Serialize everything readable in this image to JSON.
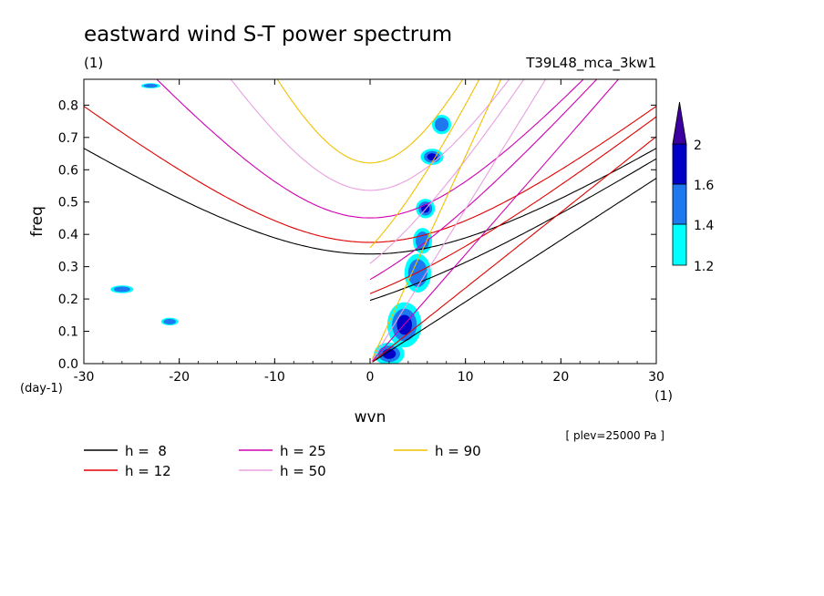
{
  "chart_data": {
    "type": "heatmap",
    "title": "eastward wind S-T power spectrum",
    "subtitle_left": "(1)",
    "subtitle_right": "T39L48_mca_3kw1",
    "xlabel": "wvn",
    "x_unit": "(1)",
    "ylabel": "freq",
    "y_unit": "(day-1)",
    "note": "[ plev=25000 Pa ]",
    "xlim": [
      -30,
      30
    ],
    "ylim": [
      0,
      0.88
    ],
    "x_ticks": [
      -30,
      -20,
      -10,
      0,
      10,
      20,
      30
    ],
    "x_tick_labels": [
      "-30",
      "-20",
      "-10",
      "0",
      "10",
      "20",
      "30"
    ],
    "y_ticks": [
      0,
      0.1,
      0.2,
      0.3,
      0.4,
      0.5,
      0.6,
      0.7,
      0.8
    ],
    "y_tick_labels": [
      "0.0",
      "0.1",
      "0.2",
      "0.3",
      "0.4",
      "0.5",
      "0.6",
      "0.7",
      "0.8"
    ],
    "colorbar": {
      "levels": [
        1.2,
        1.4,
        1.6,
        2
      ],
      "labels": [
        "1.2",
        "1.4",
        "1.6",
        "2"
      ],
      "colors": [
        "#00ffff",
        "#1e78f0",
        "#0000c8",
        "#3c00a0"
      ]
    },
    "dispersion_curves": [
      {
        "label": "h =  8",
        "h": 8,
        "color": "#000000"
      },
      {
        "label": "h = 12",
        "h": 12,
        "color": "#e00000"
      },
      {
        "label": "h = 25",
        "h": 25,
        "color": "#d000b0"
      },
      {
        "label": "h = 50",
        "h": 50,
        "color": "#e8a0e0"
      },
      {
        "label": "h = 90",
        "h": 90,
        "color": "#f0c000"
      }
    ],
    "contour_blobs": [
      {
        "x": 2.0,
        "y": 0.03,
        "rx": 1.6,
        "ry": 0.035,
        "level": 2
      },
      {
        "x": 3.6,
        "y": 0.12,
        "rx": 1.8,
        "ry": 0.07,
        "level": 2
      },
      {
        "x": 5.0,
        "y": 0.28,
        "rx": 1.4,
        "ry": 0.06,
        "level": 1
      },
      {
        "x": 5.5,
        "y": 0.38,
        "rx": 1.0,
        "ry": 0.04,
        "level": 1
      },
      {
        "x": 5.8,
        "y": 0.48,
        "rx": 1.0,
        "ry": 0.03,
        "level": 2
      },
      {
        "x": 6.5,
        "y": 0.64,
        "rx": 1.2,
        "ry": 0.025,
        "level": 2
      },
      {
        "x": 7.5,
        "y": 0.74,
        "rx": 1.0,
        "ry": 0.03,
        "level": 1
      },
      {
        "x": -26.0,
        "y": 0.23,
        "rx": 1.2,
        "ry": 0.012,
        "level": 1
      },
      {
        "x": -21.0,
        "y": 0.13,
        "rx": 0.9,
        "ry": 0.012,
        "level": 1
      },
      {
        "x": -23.0,
        "y": 0.86,
        "rx": 1.0,
        "ry": 0.008,
        "level": 1
      }
    ]
  }
}
